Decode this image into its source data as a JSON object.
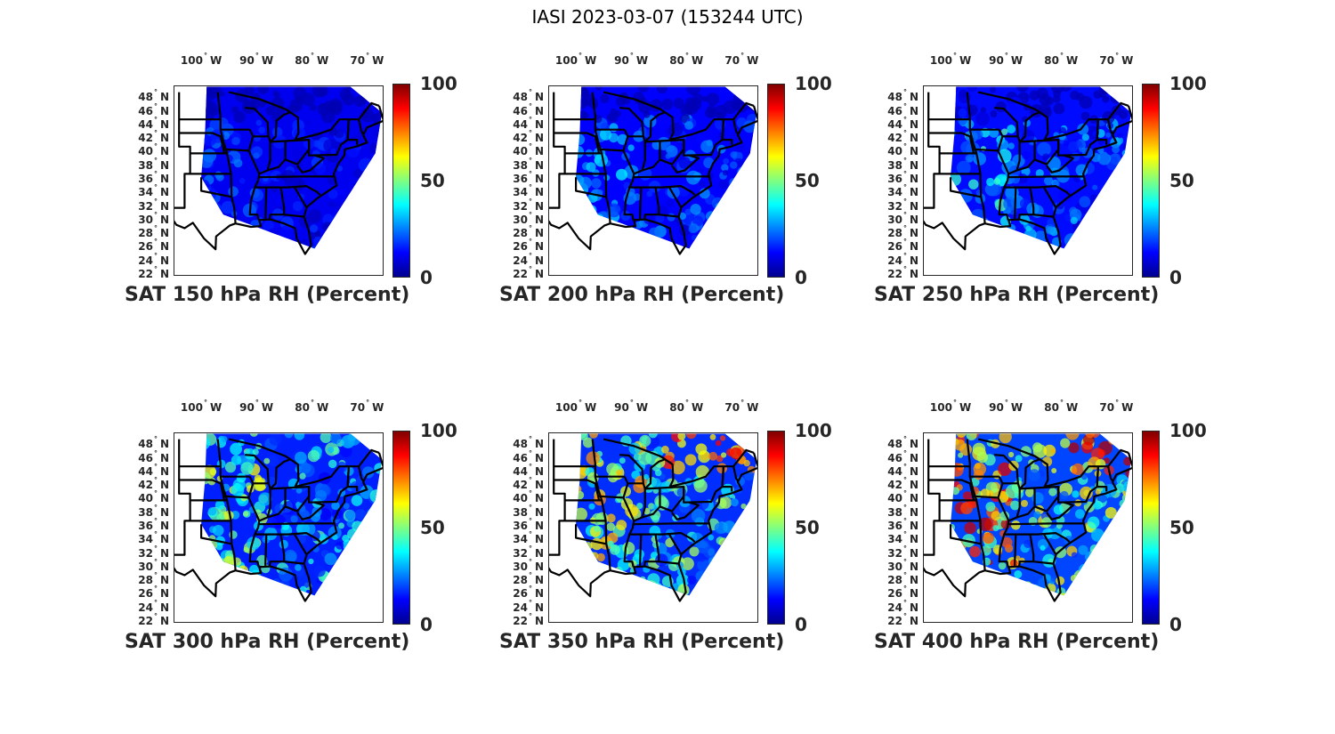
{
  "suptitle": "IASI 2023-03-07 (153244 UTC)",
  "colors": {
    "state_lines": "#000000",
    "frame": "#262626"
  },
  "icons": {
    "colormap": "jet"
  },
  "chart_data": [
    {
      "type": "heatmap",
      "title": "SAT 150 hPa RH (Percent)",
      "pressure_hPa": 150,
      "x_ticks": [
        "100",
        "90",
        "80",
        "70"
      ],
      "x_unit": "W",
      "y_ticks": [
        "48",
        "46",
        "44",
        "42",
        "40",
        "38",
        "36",
        "34",
        "32",
        "30",
        "28",
        "26",
        "24",
        "22"
      ],
      "y_unit": "N",
      "xlim": [
        -105,
        -67
      ],
      "ylim": [
        22,
        50
      ],
      "colorbar": {
        "ticks": [
          "100",
          "50",
          "0"
        ],
        "range": [
          0,
          100
        ],
        "colormap": "jet"
      },
      "summary_level": 12
    },
    {
      "type": "heatmap",
      "title": "SAT 200 hPa RH (Percent)",
      "pressure_hPa": 200,
      "x_ticks": [
        "100",
        "90",
        "80",
        "70"
      ],
      "x_unit": "W",
      "y_ticks": [
        "48",
        "46",
        "44",
        "42",
        "40",
        "38",
        "36",
        "34",
        "32",
        "30",
        "28",
        "26",
        "24",
        "22"
      ],
      "y_unit": "N",
      "xlim": [
        -105,
        -67
      ],
      "ylim": [
        22,
        50
      ],
      "colorbar": {
        "ticks": [
          "100",
          "50",
          "0"
        ],
        "range": [
          0,
          100
        ],
        "colormap": "jet"
      },
      "summary_level": 18
    },
    {
      "type": "heatmap",
      "title": "SAT 250 hPa RH (Percent)",
      "pressure_hPa": 250,
      "x_ticks": [
        "100",
        "90",
        "80",
        "70"
      ],
      "x_unit": "W",
      "y_ticks": [
        "48",
        "46",
        "44",
        "42",
        "40",
        "38",
        "36",
        "34",
        "32",
        "30",
        "28",
        "26",
        "24",
        "22"
      ],
      "y_unit": "N",
      "xlim": [
        -105,
        -67
      ],
      "ylim": [
        22,
        50
      ],
      "colorbar": {
        "ticks": [
          "100",
          "50",
          "0"
        ],
        "range": [
          0,
          100
        ],
        "colormap": "jet"
      },
      "summary_level": 22
    },
    {
      "type": "heatmap",
      "title": "SAT 300 hPa RH (Percent)",
      "pressure_hPa": 300,
      "x_ticks": [
        "100",
        "90",
        "80",
        "70"
      ],
      "x_unit": "W",
      "y_ticks": [
        "48",
        "46",
        "44",
        "42",
        "40",
        "38",
        "36",
        "34",
        "32",
        "30",
        "28",
        "26",
        "24",
        "22"
      ],
      "y_unit": "N",
      "xlim": [
        -105,
        -67
      ],
      "ylim": [
        22,
        50
      ],
      "colorbar": {
        "ticks": [
          "100",
          "50",
          "0"
        ],
        "range": [
          0,
          100
        ],
        "colormap": "jet"
      },
      "summary_level": 30
    },
    {
      "type": "heatmap",
      "title": "SAT 350 hPa RH (Percent)",
      "pressure_hPa": 350,
      "x_ticks": [
        "100",
        "90",
        "80",
        "70"
      ],
      "x_unit": "W",
      "y_ticks": [
        "48",
        "46",
        "44",
        "42",
        "40",
        "38",
        "36",
        "34",
        "32",
        "30",
        "28",
        "26",
        "24",
        "22"
      ],
      "y_unit": "N",
      "xlim": [
        -105,
        -67
      ],
      "ylim": [
        22,
        50
      ],
      "colorbar": {
        "ticks": [
          "100",
          "50",
          "0"
        ],
        "range": [
          0,
          100
        ],
        "colormap": "jet"
      },
      "summary_level": 36
    },
    {
      "type": "heatmap",
      "title": "SAT 400 hPa RH (Percent)",
      "pressure_hPa": 400,
      "x_ticks": [
        "100",
        "90",
        "80",
        "70"
      ],
      "x_unit": "W",
      "y_ticks": [
        "48",
        "46",
        "44",
        "42",
        "40",
        "38",
        "36",
        "34",
        "32",
        "30",
        "28",
        "26",
        "24",
        "22"
      ],
      "y_unit": "N",
      "xlim": [
        -105,
        -67
      ],
      "ylim": [
        22,
        50
      ],
      "colorbar": {
        "ticks": [
          "100",
          "50",
          "0"
        ],
        "range": [
          0,
          100
        ],
        "colormap": "jet"
      },
      "summary_level": 45
    }
  ]
}
